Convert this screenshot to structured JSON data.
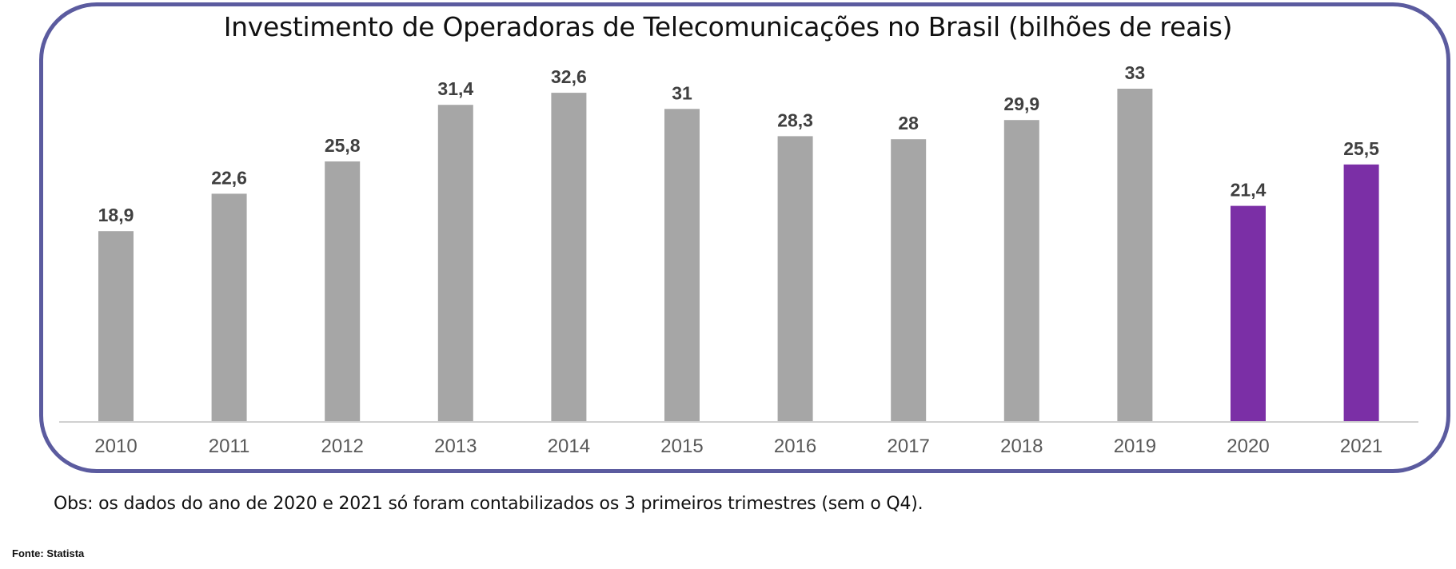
{
  "chart_data": {
    "type": "bar",
    "title": "Investimento de Operadoras de Telecomunicações no Brasil (bilhões de reais)",
    "categories": [
      "2010",
      "2011",
      "2012",
      "2013",
      "2014",
      "2015",
      "2016",
      "2017",
      "2018",
      "2019",
      "2020",
      "2021"
    ],
    "values": [
      18.9,
      22.6,
      25.8,
      31.4,
      32.6,
      31,
      28.3,
      28,
      29.9,
      33,
      21.4,
      25.5
    ],
    "value_labels": [
      "18,9",
      "22,6",
      "25,8",
      "31,4",
      "32,6",
      "31",
      "28,3",
      "28",
      "29,9",
      "33",
      "21,4",
      "25,5"
    ],
    "bar_colors": [
      "#a6a6a6",
      "#a6a6a6",
      "#a6a6a6",
      "#a6a6a6",
      "#a6a6a6",
      "#a6a6a6",
      "#a6a6a6",
      "#a6a6a6",
      "#a6a6a6",
      "#a6a6a6",
      "#7b2fa6",
      "#7b2fa6"
    ],
    "ylim": [
      0,
      33
    ],
    "grid": false,
    "legend": "none",
    "xlabel": "",
    "ylabel": ""
  },
  "notes": {
    "observation": "Obs: os dados do ano de 2020 e 2021 só foram contabilizados os 3 primeiros trimestres (sem o Q4).",
    "source": "Fonte: Statista"
  },
  "colors": {
    "frame": "#5b5b9f",
    "axis": "#d0d0d0",
    "label_text": "#404040",
    "tick_text": "#595959"
  }
}
